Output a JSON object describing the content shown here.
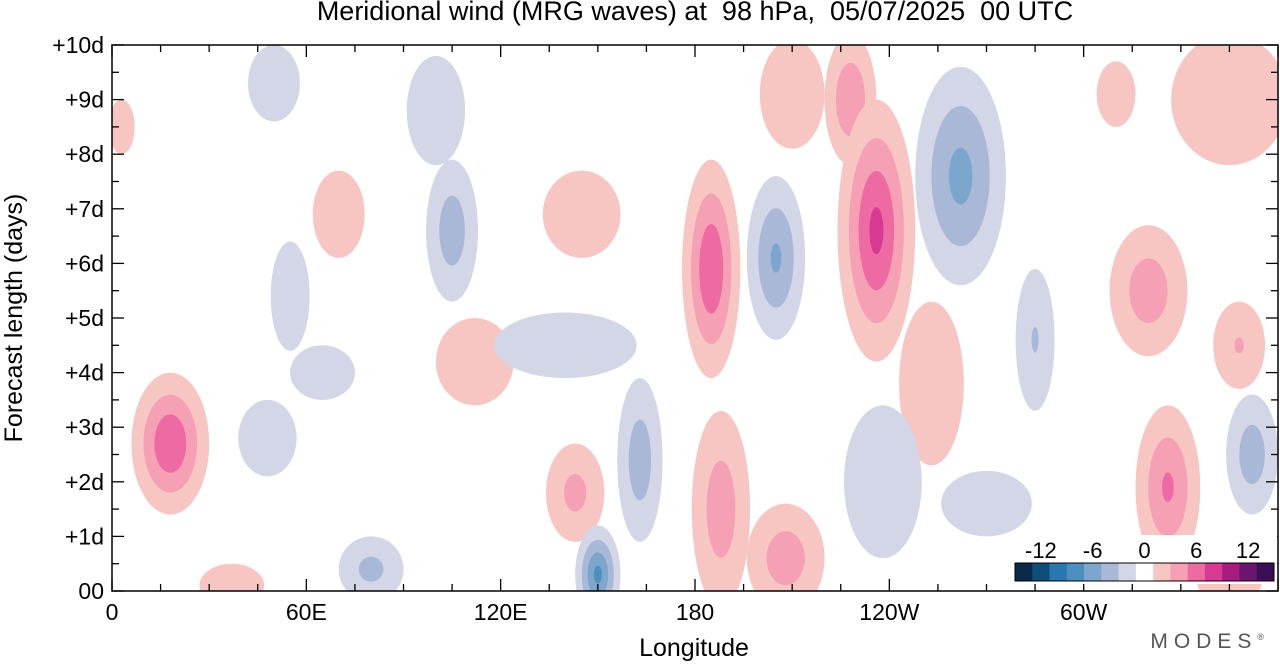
{
  "chart_data": {
    "type": "heatmap",
    "title": "Meridional wind (MRG waves) at  98 hPa,  05/07/2025  00 UTC",
    "xlabel": "Longitude",
    "ylabel": "Forecast length (days)",
    "x_ticks": [
      "0",
      "60E",
      "120E",
      "180",
      "120W",
      "60W"
    ],
    "x_tick_values": [
      0,
      60,
      120,
      180,
      240,
      300
    ],
    "xlim": [
      0,
      360
    ],
    "y_ticks": [
      "00",
      "+1d",
      "+2d",
      "+3d",
      "+4d",
      "+5d",
      "+6d",
      "+7d",
      "+8d",
      "+9d",
      "+10d"
    ],
    "ylim": [
      0,
      10
    ],
    "colorbar": {
      "labels": [
        "-12",
        "-6",
        "0",
        "6",
        "12"
      ],
      "levels": [
        -15,
        -12,
        -10,
        -8,
        -6,
        -4,
        -2,
        2,
        4,
        6,
        8,
        10,
        12,
        15
      ],
      "colors": [
        "#0a2a4a",
        "#0e4f7a",
        "#2878b0",
        "#4d90c0",
        "#7ca6cc",
        "#aab8d8",
        "#d2d6e6",
        "#ffffff",
        "#f8c6c2",
        "#f5a0b4",
        "#ee6aa2",
        "#d63a92",
        "#a81c80",
        "#6a1670",
        "#3c0e58"
      ],
      "position": "bottom-right"
    },
    "features": [
      {
        "lon": 18,
        "day": 2.7,
        "value": 7.5,
        "wlon": 12,
        "wday": 1.3
      },
      {
        "lon": 37,
        "day": 0.1,
        "value": 2.5,
        "wlon": 10,
        "wday": 0.4
      },
      {
        "lon": 48,
        "day": 2.8,
        "value": -3,
        "wlon": 9,
        "wday": 0.7
      },
      {
        "lon": 55,
        "day": 5.4,
        "value": -2.5,
        "wlon": 6,
        "wday": 1.0
      },
      {
        "lon": 50,
        "day": 9.3,
        "value": -2.5,
        "wlon": 8,
        "wday": 0.7
      },
      {
        "lon": 70,
        "day": 6.9,
        "value": 3,
        "wlon": 8,
        "wday": 0.8
      },
      {
        "lon": 65,
        "day": 4.0,
        "value": -2.5,
        "wlon": 10,
        "wday": 0.5
      },
      {
        "lon": 80,
        "day": 0.4,
        "value": -4.5,
        "wlon": 10,
        "wday": 0.6
      },
      {
        "lon": 105,
        "day": 6.6,
        "value": -5,
        "wlon": 8,
        "wday": 1.3
      },
      {
        "lon": 100,
        "day": 8.8,
        "value": -2.5,
        "wlon": 9,
        "wday": 1.0
      },
      {
        "lon": 112,
        "day": 4.2,
        "value": 3.5,
        "wlon": 12,
        "wday": 0.8
      },
      {
        "lon": 145,
        "day": 6.9,
        "value": 3,
        "wlon": 12,
        "wday": 0.8
      },
      {
        "lon": 140,
        "day": 4.5,
        "value": -2.5,
        "wlon": 22,
        "wday": 0.6
      },
      {
        "lon": 143,
        "day": 1.8,
        "value": 4.5,
        "wlon": 9,
        "wday": 0.9
      },
      {
        "lon": 150,
        "day": 0.3,
        "value": -8,
        "wlon": 7,
        "wday": 0.9
      },
      {
        "lon": 163,
        "day": 2.4,
        "value": -5,
        "wlon": 7,
        "wday": 1.5
      },
      {
        "lon": 185,
        "day": 5.9,
        "value": 7.5,
        "wlon": 9,
        "wday": 2.0
      },
      {
        "lon": 188,
        "day": 1.5,
        "value": 5,
        "wlon": 9,
        "wday": 1.8
      },
      {
        "lon": 205,
        "day": 6.1,
        "value": -6,
        "wlon": 9,
        "wday": 1.5
      },
      {
        "lon": 208,
        "day": 0.6,
        "value": 5,
        "wlon": 12,
        "wday": 1.0
      },
      {
        "lon": 210,
        "day": 9.1,
        "value": 3,
        "wlon": 10,
        "wday": 1.0
      },
      {
        "lon": 228,
        "day": 9.0,
        "value": 5.5,
        "wlon": 8,
        "wday": 1.2
      },
      {
        "lon": 236,
        "day": 6.6,
        "value": 8,
        "wlon": 12,
        "wday": 2.4
      },
      {
        "lon": 253,
        "day": 3.8,
        "value": 3,
        "wlon": 10,
        "wday": 1.5
      },
      {
        "lon": 262,
        "day": 7.6,
        "value": -6.5,
        "wlon": 14,
        "wday": 2.0
      },
      {
        "lon": 285,
        "day": 4.6,
        "value": -4,
        "wlon": 6,
        "wday": 1.3
      },
      {
        "lon": 238,
        "day": 2.0,
        "value": -3,
        "wlon": 12,
        "wday": 1.4
      },
      {
        "lon": 270,
        "day": 1.6,
        "value": -2.5,
        "wlon": 14,
        "wday": 0.6
      },
      {
        "lon": 310,
        "day": 9.1,
        "value": 3,
        "wlon": 6,
        "wday": 0.6
      },
      {
        "lon": 320,
        "day": 5.5,
        "value": 5,
        "wlon": 12,
        "wday": 1.2
      },
      {
        "lon": 326,
        "day": 1.9,
        "value": 6,
        "wlon": 10,
        "wday": 1.5
      },
      {
        "lon": 348,
        "day": 4.5,
        "value": 4,
        "wlon": 8,
        "wday": 0.8
      },
      {
        "lon": 352,
        "day": 2.5,
        "value": -5,
        "wlon": 8,
        "wday": 1.1
      },
      {
        "lon": 345,
        "day": 9.0,
        "value": 3,
        "wlon": 18,
        "wday": 1.2
      },
      {
        "lon": 345,
        "day": 0.2,
        "value": 3,
        "wlon": 10,
        "wday": 0.5
      },
      {
        "lon": 3,
        "day": 8.5,
        "value": 2.5,
        "wlon": 4,
        "wday": 0.5
      }
    ]
  },
  "brand": "MODES",
  "brand_mark": "®"
}
